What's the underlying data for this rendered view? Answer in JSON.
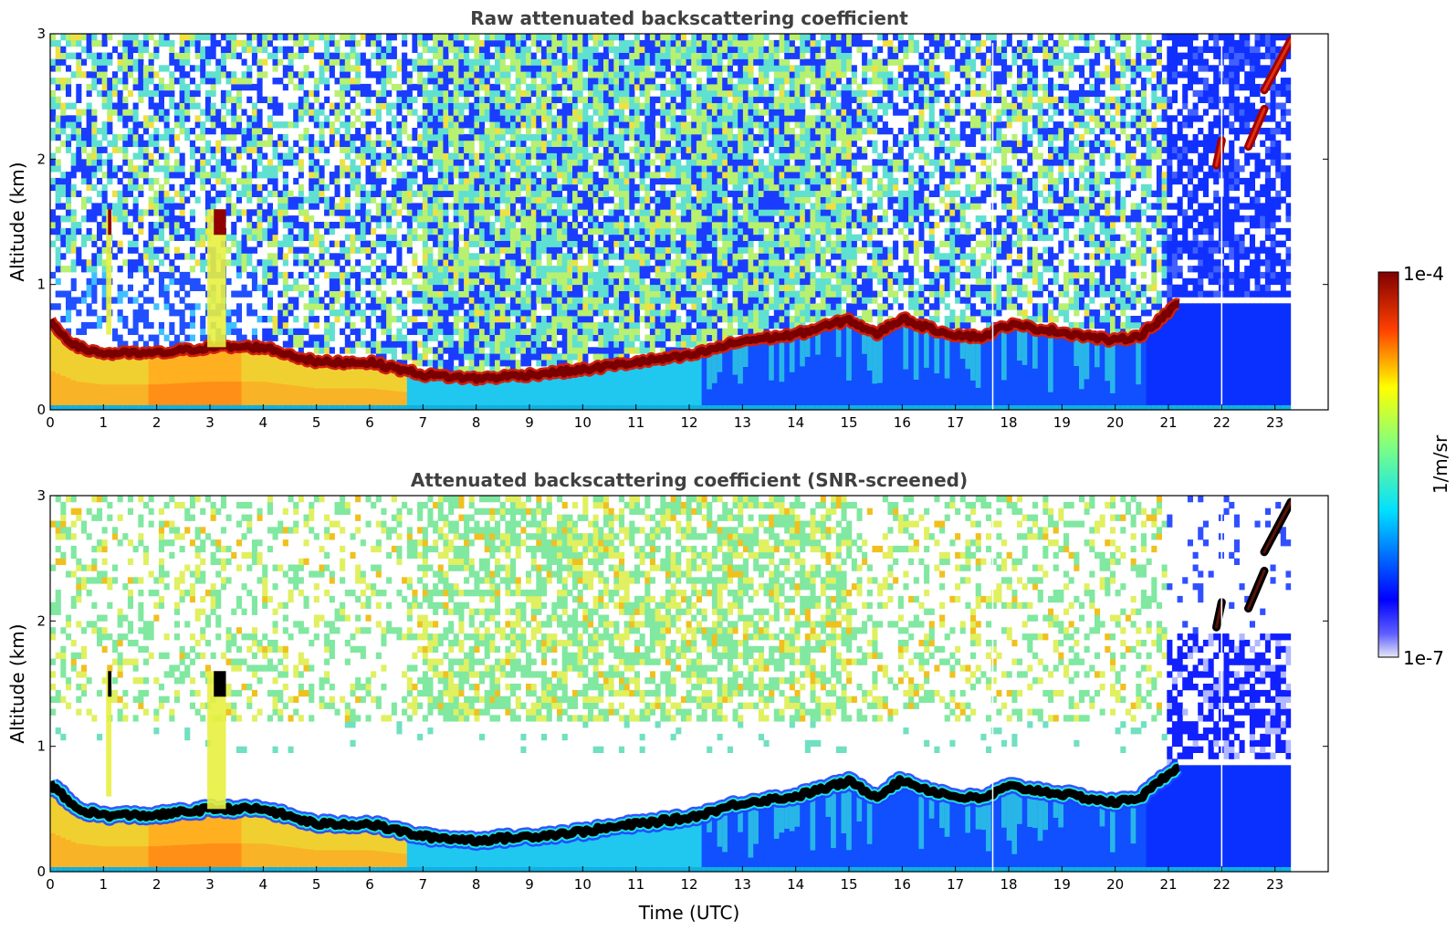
{
  "chart_data": [
    {
      "type": "heatmap",
      "title": "Raw attenuated backscattering coefficient",
      "xlabel": "",
      "ylabel": "Altitude (km)",
      "xlim": [
        0,
        24
      ],
      "ylim": [
        0,
        3
      ],
      "xticks": [
        "0",
        "1",
        "2",
        "3",
        "4",
        "5",
        "6",
        "7",
        "8",
        "9",
        "10",
        "11",
        "12",
        "13",
        "14",
        "15",
        "16",
        "17",
        "18",
        "19",
        "20",
        "21",
        "22",
        "23"
      ],
      "yticks": [
        "0",
        "1",
        "2",
        "3"
      ],
      "data_end_time": 23.3,
      "layer_top_km": {
        "t": [
          0,
          0.5,
          1,
          2,
          3,
          4,
          5,
          6,
          7,
          8,
          9,
          10,
          11,
          12,
          13,
          14,
          15,
          15.5,
          16,
          16.5,
          17,
          17.5,
          18,
          19,
          20,
          20.5,
          21,
          21.2
        ],
        "alt": [
          0.7,
          0.5,
          0.45,
          0.45,
          0.5,
          0.5,
          0.38,
          0.38,
          0.28,
          0.25,
          0.28,
          0.32,
          0.38,
          0.43,
          0.55,
          0.6,
          0.72,
          0.6,
          0.73,
          0.65,
          0.6,
          0.58,
          0.68,
          0.62,
          0.55,
          0.6,
          0.78,
          0.85
        ]
      },
      "elevated_features": [
        {
          "t0": 1.05,
          "t1": 1.15,
          "alt0": 0.6,
          "alt1": 1.6
        },
        {
          "t0": 2.95,
          "t1": 3.3,
          "alt0": 0.5,
          "alt1": 1.6
        },
        {
          "t0": 21.9,
          "t1": 22.0,
          "alt0": 1.95,
          "alt1": 2.15
        },
        {
          "t0": 22.5,
          "t1": 22.8,
          "alt0": 2.1,
          "alt1": 2.4
        },
        {
          "t0": 22.8,
          "t1": 23.3,
          "alt0": 2.55,
          "alt1": 2.95
        }
      ]
    },
    {
      "type": "heatmap",
      "title": "Attenuated backscattering coefficient (SNR-screened)",
      "xlabel": "Time (UTC)",
      "ylabel": "Altitude (km)",
      "xlim": [
        0,
        24
      ],
      "ylim": [
        0,
        3
      ],
      "xticks": [
        "0",
        "1",
        "2",
        "3",
        "4",
        "5",
        "6",
        "7",
        "8",
        "9",
        "10",
        "11",
        "12",
        "13",
        "14",
        "15",
        "16",
        "17",
        "18",
        "19",
        "20",
        "21",
        "22",
        "23"
      ],
      "yticks": [
        "0",
        "1",
        "2",
        "3"
      ],
      "data_end_time": 23.3
    }
  ],
  "colorbar": {
    "label": "1/m/sr",
    "max_label": "1e-4",
    "min_label": "1e-7",
    "colormap": [
      "#ffffff",
      "#0000ff",
      "#00ffff",
      "#ffff00",
      "#ff0000",
      "#800000"
    ]
  }
}
